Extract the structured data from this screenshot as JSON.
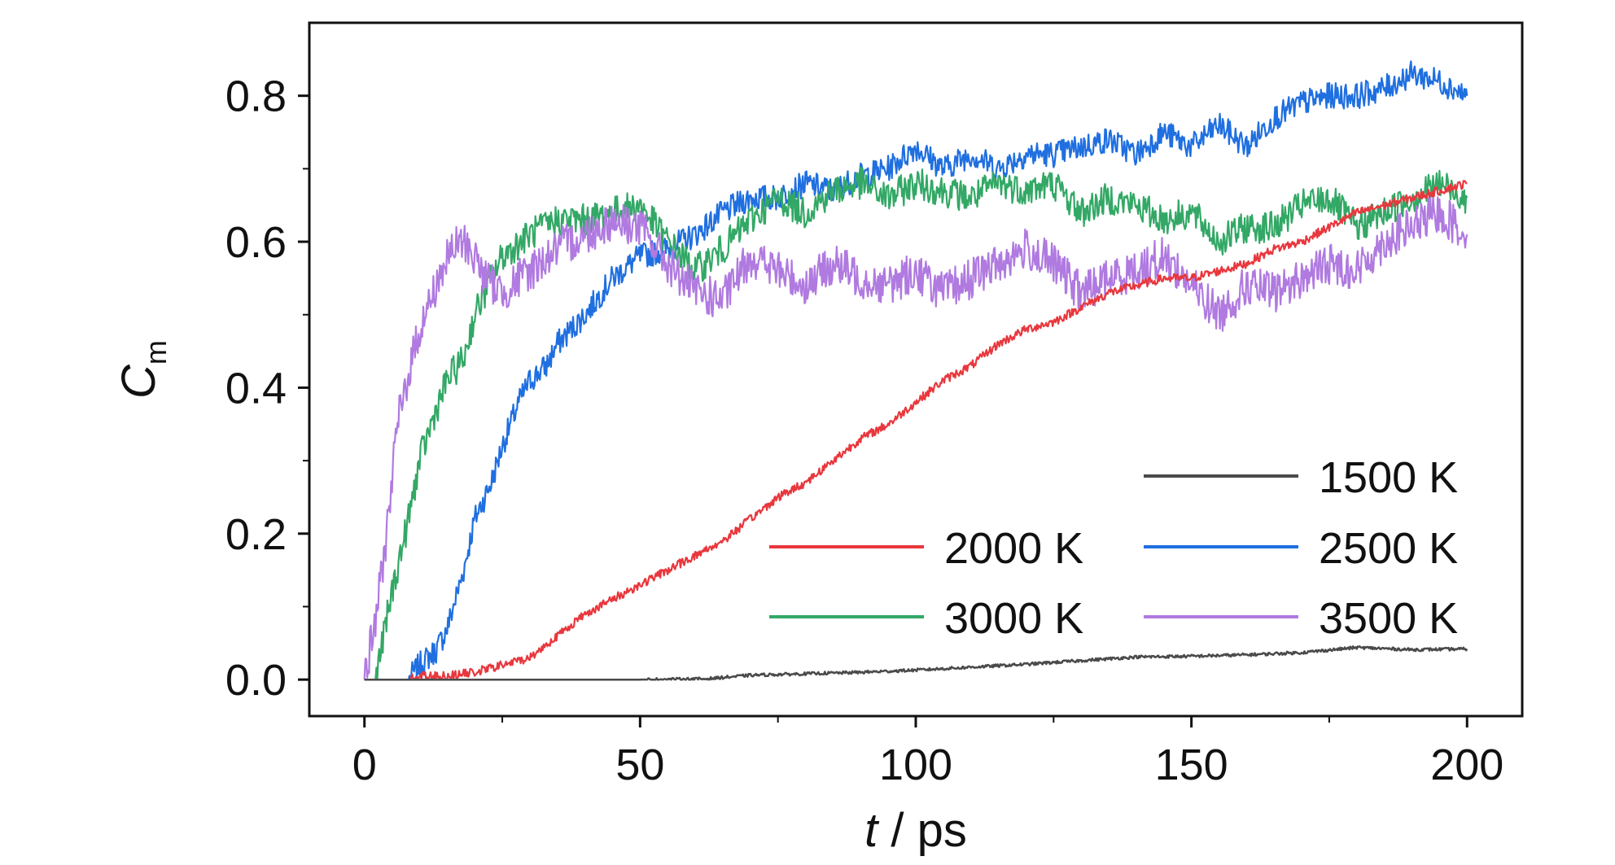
{
  "chart_data": {
    "type": "line",
    "xlabel": {
      "italic": "t",
      "rest": " / ps"
    },
    "ylabel": {
      "main": "C",
      "sub": "m"
    },
    "xlim": [
      -10,
      210
    ],
    "ylim": [
      -0.05,
      0.9
    ],
    "xticks": [
      "0",
      "50",
      "100",
      "150",
      "200"
    ],
    "xtick_values": [
      0,
      50,
      100,
      150,
      200
    ],
    "yticks": [
      "0.0",
      "0.2",
      "0.4",
      "0.6",
      "0.8"
    ],
    "ytick_values": [
      0.0,
      0.2,
      0.4,
      0.6,
      0.8
    ],
    "grid": false,
    "legend_placement": "bottom-right",
    "colors": {
      "1500 K": "#4a4a4a",
      "2000 K": "#e8373d",
      "2500 K": "#1f6fe0",
      "3000 K": "#33a866",
      "3500 K": "#b07ae0"
    },
    "series": [
      {
        "name": "1500 K",
        "noise": 0.002,
        "x": [
          0,
          50,
          62,
          70,
          80,
          90,
          100,
          110,
          120,
          130,
          140,
          150,
          160,
          170,
          180,
          190,
          200
        ],
        "y": [
          0,
          0,
          0.001,
          0.006,
          0.008,
          0.01,
          0.013,
          0.017,
          0.021,
          0.026,
          0.031,
          0.032,
          0.034,
          0.037,
          0.044,
          0.041,
          0.042
        ]
      },
      {
        "name": "2000 K",
        "noise": 0.006,
        "x": [
          0,
          8,
          10,
          15,
          20,
          25,
          30,
          35,
          40,
          45,
          50,
          55,
          60,
          65,
          70,
          75,
          80,
          85,
          90,
          95,
          100,
          105,
          110,
          115,
          120,
          125,
          130,
          135,
          140,
          145,
          150,
          155,
          160,
          165,
          170,
          175,
          180,
          185,
          190,
          195,
          200
        ],
        "y": [
          0,
          0,
          0.005,
          0.005,
          0.01,
          0.02,
          0.03,
          0.06,
          0.09,
          0.11,
          0.13,
          0.15,
          0.17,
          0.19,
          0.22,
          0.25,
          0.27,
          0.3,
          0.33,
          0.35,
          0.38,
          0.41,
          0.43,
          0.46,
          0.48,
          0.49,
          0.51,
          0.53,
          0.54,
          0.55,
          0.55,
          0.56,
          0.57,
          0.59,
          0.6,
          0.62,
          0.64,
          0.65,
          0.66,
          0.67,
          0.68
        ]
      },
      {
        "name": "2500 K",
        "noise": 0.018,
        "x": [
          0,
          5,
          8,
          10,
          13,
          15,
          18,
          20,
          23,
          25,
          28,
          30,
          33,
          35,
          40,
          45,
          50,
          55,
          60,
          65,
          70,
          75,
          80,
          85,
          90,
          95,
          100,
          105,
          110,
          115,
          120,
          125,
          130,
          135,
          140,
          145,
          150,
          155,
          160,
          165,
          170,
          175,
          180,
          185,
          190,
          195,
          200
        ],
        "y": [
          0,
          0,
          0,
          0.02,
          0.04,
          0.07,
          0.15,
          0.22,
          0.27,
          0.32,
          0.38,
          0.41,
          0.43,
          0.46,
          0.5,
          0.55,
          0.58,
          0.59,
          0.61,
          0.64,
          0.66,
          0.66,
          0.68,
          0.67,
          0.69,
          0.7,
          0.73,
          0.7,
          0.72,
          0.7,
          0.72,
          0.72,
          0.73,
          0.74,
          0.72,
          0.75,
          0.73,
          0.76,
          0.73,
          0.77,
          0.79,
          0.8,
          0.8,
          0.81,
          0.83,
          0.82,
          0.8
        ]
      },
      {
        "name": "3000 K",
        "noise": 0.022,
        "x": [
          0,
          2,
          5,
          8,
          10,
          13,
          15,
          18,
          20,
          23,
          25,
          30,
          35,
          40,
          45,
          50,
          55,
          60,
          65,
          70,
          75,
          80,
          85,
          90,
          95,
          100,
          105,
          110,
          115,
          120,
          125,
          130,
          135,
          140,
          145,
          150,
          155,
          160,
          165,
          170,
          175,
          180,
          185,
          190,
          195,
          200
        ],
        "y": [
          0,
          0,
          0.12,
          0.22,
          0.3,
          0.37,
          0.41,
          0.44,
          0.5,
          0.55,
          0.58,
          0.61,
          0.63,
          0.63,
          0.64,
          0.65,
          0.6,
          0.56,
          0.59,
          0.63,
          0.66,
          0.64,
          0.67,
          0.68,
          0.66,
          0.68,
          0.67,
          0.66,
          0.68,
          0.67,
          0.68,
          0.64,
          0.66,
          0.65,
          0.63,
          0.64,
          0.6,
          0.62,
          0.62,
          0.65,
          0.66,
          0.62,
          0.64,
          0.66,
          0.68,
          0.66
        ]
      },
      {
        "name": "3500 K",
        "noise": 0.028,
        "x": [
          0,
          2,
          4,
          6,
          8,
          10,
          12,
          14,
          16,
          18,
          20,
          22,
          25,
          30,
          35,
          40,
          45,
          50,
          55,
          60,
          65,
          70,
          75,
          80,
          85,
          90,
          95,
          100,
          105,
          110,
          115,
          120,
          125,
          130,
          135,
          140,
          145,
          150,
          155,
          160,
          165,
          170,
          175,
          180,
          185,
          190,
          195,
          200
        ],
        "y": [
          0,
          0.08,
          0.2,
          0.35,
          0.42,
          0.48,
          0.52,
          0.56,
          0.59,
          0.6,
          0.58,
          0.55,
          0.53,
          0.56,
          0.59,
          0.61,
          0.63,
          0.62,
          0.57,
          0.53,
          0.52,
          0.58,
          0.56,
          0.54,
          0.57,
          0.55,
          0.54,
          0.56,
          0.53,
          0.55,
          0.57,
          0.59,
          0.57,
          0.53,
          0.55,
          0.56,
          0.58,
          0.54,
          0.5,
          0.54,
          0.53,
          0.55,
          0.57,
          0.56,
          0.6,
          0.62,
          0.64,
          0.61
        ]
      }
    ],
    "legend": [
      {
        "name": "1500 K",
        "row": 0,
        "col": 1
      },
      {
        "name": "2000 K",
        "row": 1,
        "col": 0
      },
      {
        "name": "2500 K",
        "row": 1,
        "col": 1
      },
      {
        "name": "3000 K",
        "row": 2,
        "col": 0
      },
      {
        "name": "3500 K",
        "row": 2,
        "col": 1
      }
    ]
  }
}
